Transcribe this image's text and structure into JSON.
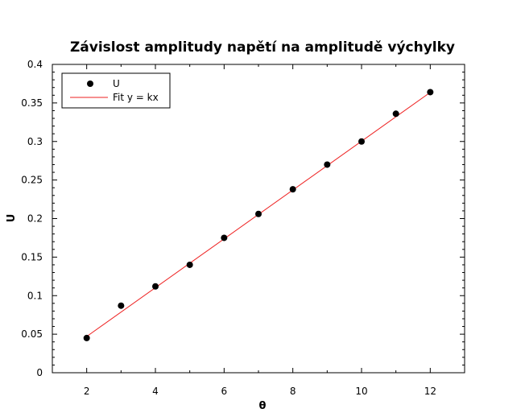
{
  "chart_data": {
    "type": "scatter",
    "title": "Závislost amplitudy napětí na amplitudě výchylky",
    "xlabel": "θ",
    "ylabel": "U",
    "xlim": [
      1,
      13
    ],
    "ylim": [
      0,
      0.4
    ],
    "x_ticks": [
      2,
      4,
      6,
      8,
      10,
      12
    ],
    "x_tick_labels": [
      "2",
      "4",
      "6",
      "8",
      "10",
      "12"
    ],
    "y_ticks": [
      0,
      0.05,
      0.1,
      0.15,
      0.2,
      0.25,
      0.3,
      0.35,
      0.4
    ],
    "y_tick_labels": [
      "0",
      "0.05",
      "0.1",
      "0.15",
      "0.2",
      "0.25",
      "0.3",
      "0.35",
      "0.4"
    ],
    "grid": false,
    "legend_position": "top-left",
    "series": [
      {
        "name": "U",
        "kind": "points",
        "color": "#000000",
        "x": [
          2,
          3,
          4,
          5,
          6,
          7,
          8,
          9,
          10,
          11,
          12
        ],
        "y": [
          0.045,
          0.087,
          0.112,
          0.14,
          0.175,
          0.206,
          0.238,
          0.27,
          0.3,
          0.336,
          0.364
        ]
      },
      {
        "name": "Fit y = kx",
        "kind": "line",
        "color": "#ee2222",
        "x": [
          2,
          12
        ],
        "y": [
          0.047,
          0.3637
        ]
      }
    ]
  }
}
